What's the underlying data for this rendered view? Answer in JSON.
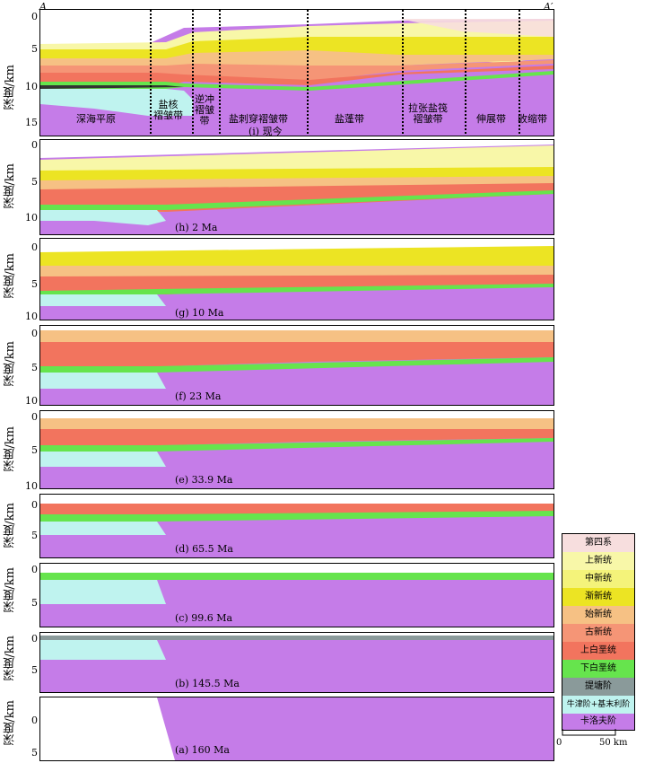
{
  "profile_ends": {
    "left": "A",
    "right": "A′"
  },
  "y_axis_label": "深度/km",
  "zones": [
    {
      "label": "深海平原"
    },
    {
      "label": "盐核\n褶皱带"
    },
    {
      "label": "逆冲\n褶皱\n带"
    },
    {
      "label": "盐刺穿褶皱带"
    },
    {
      "label": "盐蓬带"
    },
    {
      "label": "拉张盐筏\n褶皱带"
    },
    {
      "label": "伸展带"
    },
    {
      "label": "收缩带"
    }
  ],
  "panels": [
    {
      "id": "i",
      "title": "(i) 现今",
      "ticks": [
        "0",
        "5",
        "10",
        "15"
      ]
    },
    {
      "id": "h",
      "title": "(h) 2 Ma",
      "ticks": [
        "0",
        "5",
        "10"
      ]
    },
    {
      "id": "g",
      "title": "(g) 10 Ma",
      "ticks": [
        "0",
        "5",
        "10"
      ]
    },
    {
      "id": "f",
      "title": "(f) 23 Ma",
      "ticks": [
        "0",
        "5",
        "10"
      ]
    },
    {
      "id": "e",
      "title": "(e) 33.9 Ma",
      "ticks": [
        "0",
        "5",
        "10"
      ]
    },
    {
      "id": "d",
      "title": "(d) 65.5 Ma",
      "ticks": [
        "0",
        "5"
      ]
    },
    {
      "id": "c",
      "title": "(c) 99.6 Ma",
      "ticks": [
        "0",
        "5"
      ]
    },
    {
      "id": "b",
      "title": "(b) 145.5 Ma",
      "ticks": [
        "0",
        "5"
      ]
    },
    {
      "id": "a",
      "title": "(a) 160 Ma",
      "ticks": [
        "0",
        "5"
      ]
    }
  ],
  "legend": [
    {
      "label": "第四系",
      "color": "#f7dede"
    },
    {
      "label": "上新统",
      "color": "#f8f7a8"
    },
    {
      "label": "中新统",
      "color": "#f4f37a"
    },
    {
      "label": "渐新统",
      "color": "#ece423"
    },
    {
      "label": "始新统",
      "color": "#f6c184"
    },
    {
      "label": "古新统",
      "color": "#f59576"
    },
    {
      "label": "上白垩统",
      "color": "#f2745e"
    },
    {
      "label": "下白垩统",
      "color": "#66e44d"
    },
    {
      "label": "提塘阶",
      "color": "#8a9a9a"
    },
    {
      "label": "牛津阶+基末利阶",
      "color": "#bff3ef"
    },
    {
      "label": "卡洛夫阶",
      "color": "#c57ce8"
    }
  ],
  "scale_bar": {
    "start": "0",
    "end": "50 km"
  }
}
